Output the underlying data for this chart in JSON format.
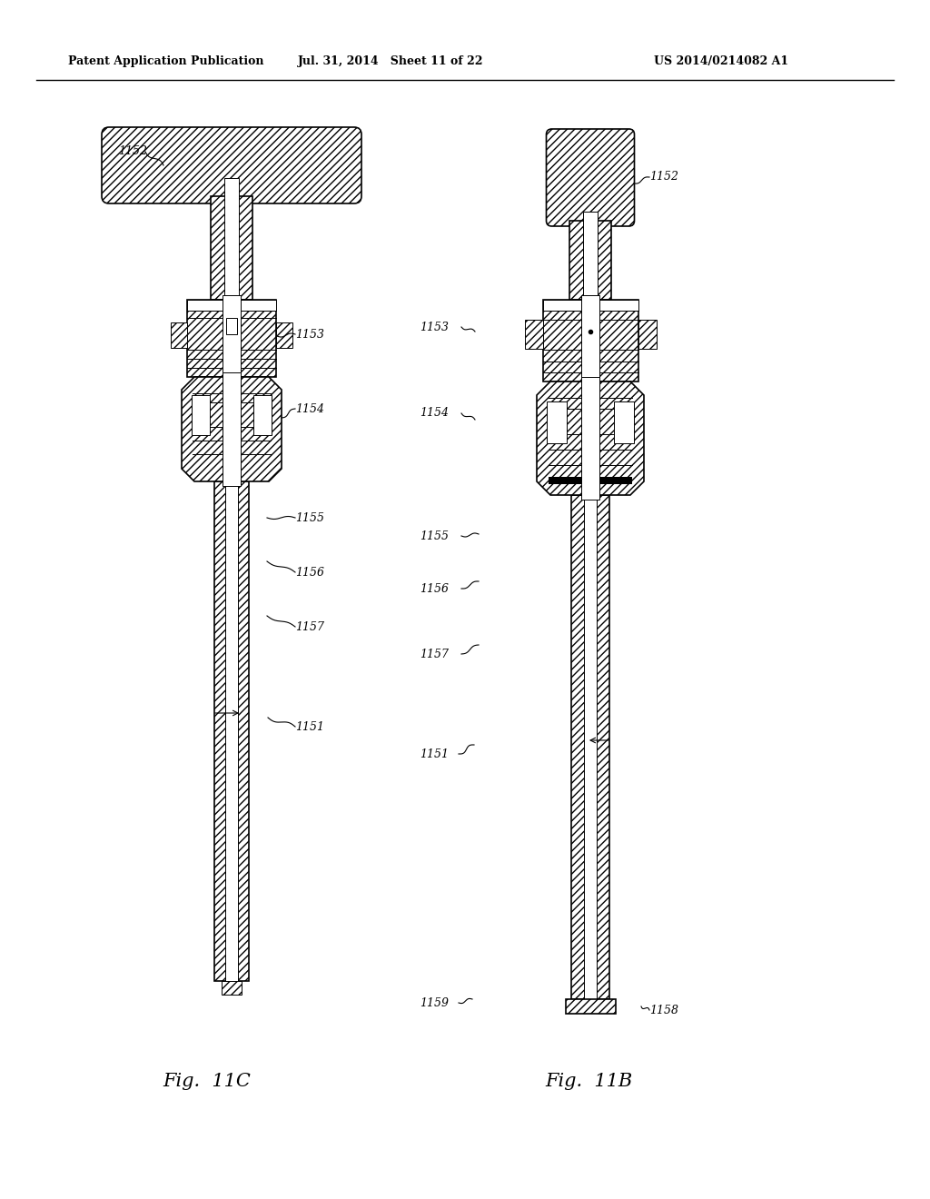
{
  "title_left": "Patent Application Publication",
  "title_mid": "Jul. 31, 2014   Sheet 11 of 22",
  "title_right": "US 2014/0214082 A1",
  "fig_label_left": "Fig.  11C",
  "fig_label_right": "Fig.  11B",
  "bg_color": "#ffffff",
  "line_color": "#000000"
}
